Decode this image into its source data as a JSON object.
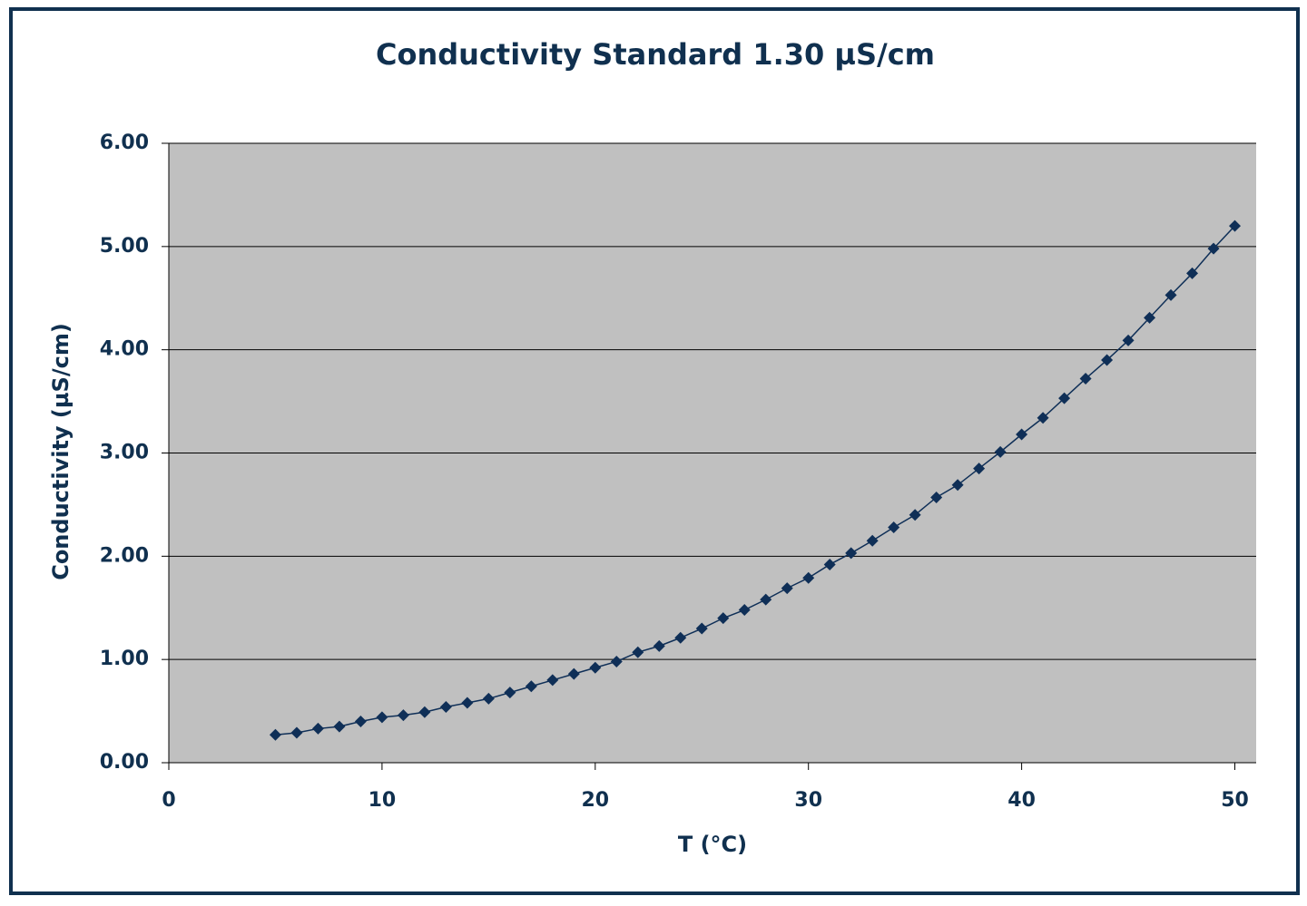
{
  "chart_data": {
    "type": "line",
    "title": "Conduct​ivity Standard 1.30 µS/cm",
    "x_label": "T (°C)",
    "y_label": "Conductivity (µS/cm)",
    "x": [
      5,
      6,
      7,
      8,
      9,
      10,
      11,
      12,
      13,
      14,
      15,
      16,
      17,
      18,
      19,
      20,
      21,
      22,
      23,
      24,
      25,
      26,
      27,
      28,
      29,
      30,
      31,
      32,
      33,
      34,
      35,
      36,
      37,
      38,
      39,
      40,
      41,
      42,
      43,
      44,
      45,
      46,
      47,
      48,
      49,
      50
    ],
    "series": [
      {
        "color": "#0f2f57",
        "values": [
          0.27,
          0.29,
          0.33,
          0.35,
          0.4,
          0.44,
          0.46,
          0.49,
          0.54,
          0.58,
          0.62,
          0.68,
          0.74,
          0.8,
          0.86,
          0.92,
          0.98,
          1.07,
          1.13,
          1.21,
          1.3,
          1.4,
          1.48,
          1.58,
          1.69,
          1.79,
          1.92,
          2.03,
          2.15,
          2.28,
          2.4,
          2.57,
          2.69,
          2.85,
          3.01,
          3.18,
          3.34,
          3.53,
          3.72,
          3.9,
          4.09,
          4.31,
          4.53,
          4.74,
          4.98,
          5.2
        ]
      }
    ],
    "xlim": [
      0,
      51
    ],
    "xticks": [
      0,
      10,
      20,
      30,
      40,
      50
    ],
    "ylim": [
      0,
      6
    ],
    "yticks": [
      {
        "value": 0,
        "label": "0.00"
      },
      {
        "value": 1,
        "label": "1.00"
      },
      {
        "value": 2,
        "label": "2.00"
      },
      {
        "value": 3,
        "label": "3.00"
      },
      {
        "value": 4,
        "label": "4.00"
      },
      {
        "value": 5,
        "label": "5.00"
      },
      {
        "value": 6,
        "label": "6.00"
      }
    ],
    "grid": true,
    "plot_background": "#c0c0c0"
  }
}
